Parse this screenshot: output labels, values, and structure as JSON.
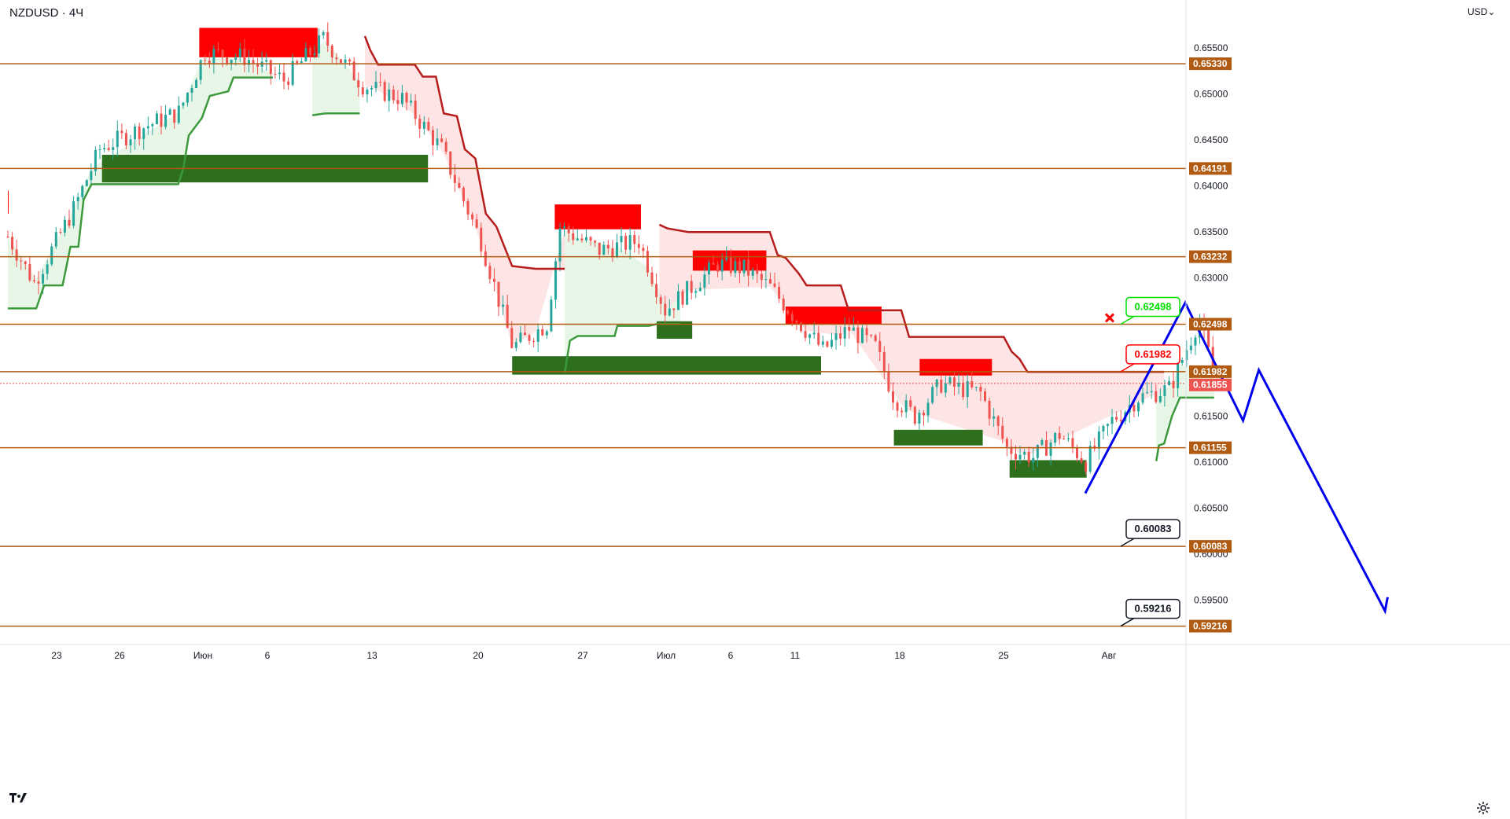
{
  "header": {
    "symbol": "NZDUSD · 4Ч",
    "currency_button": "USD"
  },
  "icons": {
    "logo": "tradingview-logo-icon",
    "settings": "gear-icon",
    "dropdown": "chevron-down-icon",
    "cancel_marker": "cross-icon"
  },
  "colors": {
    "level_line": "#b05a12",
    "supply_zone": "#ff0000",
    "demand_zone": "#2e6f1e",
    "trail_up": "#3c9a3c",
    "trail_down": "#b71c1c",
    "trail_up_fill": "#e6f5e6",
    "trail_down_fill": "#fde2e2",
    "candle_up": "#26a69a",
    "candle_down": "#ef5350",
    "projection": "#0000ee",
    "price_tag": "#b05a12",
    "current_tag": "#ef5350",
    "label_green": "#00e000",
    "label_red": "#ff0000"
  },
  "chart_data": {
    "type": "candlestick",
    "title": "NZDUSD · 4Ч",
    "y_axis": {
      "ticks": [
        "0.65500",
        "0.65000",
        "0.64500",
        "0.64000",
        "0.63500",
        "0.63000",
        "0.62500",
        "0.62000",
        "0.61500",
        "0.61000",
        "0.60500",
        "0.60000",
        "0.59500"
      ],
      "range": [
        0.5905,
        0.6598
      ]
    },
    "x_axis": {
      "ticks": [
        "23",
        "26",
        "Июн",
        "6",
        "13",
        "20",
        "27",
        "Июл",
        "6",
        "11",
        "18",
        "25",
        "Авг"
      ]
    },
    "horizontal_levels": [
      0.6533,
      0.64191,
      0.63232,
      0.62498,
      0.61982,
      0.61155,
      0.60083,
      0.59216
    ],
    "level_tags": [
      "0.65330",
      "0.64191",
      "0.63232",
      "0.62498",
      "0.61982",
      "0.61155",
      "0.60083",
      "0.59216"
    ],
    "current_price": 0.61855,
    "current_price_tag": "0.61855",
    "callouts": [
      {
        "label": "0.62498",
        "value": 0.62498,
        "style": "green"
      },
      {
        "label": "0.61982",
        "value": 0.61982,
        "style": "red"
      },
      {
        "label": "0.60083",
        "value": 0.60083,
        "style": "black"
      },
      {
        "label": "0.59216",
        "value": 0.59216,
        "style": "black"
      }
    ],
    "supply_zones": [
      {
        "x0": 0,
        "x1": 0.03,
        "y0": 0.637,
        "y1": 0.6395
      },
      {
        "x0": 7.28,
        "x1": 11.78,
        "y0": 0.654,
        "y1": 0.6572
      },
      {
        "x0": 20.8,
        "x1": 24.08,
        "y0": 0.6353,
        "y1": 0.638
      },
      {
        "x0": 26.05,
        "x1": 28.85,
        "y0": 0.6308,
        "y1": 0.633
      },
      {
        "x0": 29.58,
        "x1": 33.23,
        "y0": 0.625,
        "y1": 0.6269
      },
      {
        "x0": 34.68,
        "x1": 37.43,
        "y0": 0.6194,
        "y1": 0.6212
      }
    ],
    "demand_zones": [
      {
        "x0": 3.58,
        "x1": 15.98,
        "y0": 0.6404,
        "y1": 0.6434
      },
      {
        "x0": 19.18,
        "x1": 30.93,
        "y0": 0.6195,
        "y1": 0.6215
      },
      {
        "x0": 24.68,
        "x1": 26.03,
        "y0": 0.6234,
        "y1": 0.6253
      },
      {
        "x0": 33.7,
        "x1": 37.08,
        "y0": 0.6118,
        "y1": 0.6135
      },
      {
        "x0": 38.1,
        "x1": 41.03,
        "y0": 0.6083,
        "y1": 0.6102
      }
    ],
    "trail_up": [
      [
        [
          0.0,
          0.6267
        ],
        [
          1.08,
          0.6267
        ],
        [
          1.38,
          0.6292
        ],
        [
          2.08,
          0.6292
        ],
        [
          2.38,
          0.6334
        ],
        [
          2.68,
          0.6334
        ],
        [
          2.88,
          0.6385
        ],
        [
          3.18,
          0.6402
        ],
        [
          6.48,
          0.6402
        ],
        [
          6.68,
          0.642
        ],
        [
          6.88,
          0.6455
        ],
        [
          7.38,
          0.6474
        ],
        [
          7.68,
          0.6498
        ],
        [
          8.38,
          0.6503
        ],
        [
          8.58,
          0.6518
        ],
        [
          10.08,
          0.6518
        ]
      ],
      [
        [
          11.58,
          0.6477
        ],
        [
          12.08,
          0.6479
        ],
        [
          13.38,
          0.6479
        ]
      ],
      [
        [
          21.18,
          0.6197
        ],
        [
          21.38,
          0.6232
        ],
        [
          21.68,
          0.6237
        ],
        [
          23.08,
          0.6237
        ],
        [
          23.18,
          0.6248
        ],
        [
          24.38,
          0.6248
        ],
        [
          24.68,
          0.625
        ],
        [
          25.58,
          0.625
        ]
      ],
      [
        [
          43.68,
          0.6101
        ],
        [
          43.78,
          0.6118
        ],
        [
          43.98,
          0.612
        ],
        [
          44.28,
          0.615
        ],
        [
          44.58,
          0.617
        ],
        [
          45.88,
          0.617
        ]
      ]
    ],
    "trail_down": [
      [
        [
          13.58,
          0.6563
        ],
        [
          13.78,
          0.6548
        ],
        [
          14.08,
          0.6532
        ],
        [
          15.48,
          0.6532
        ],
        [
          15.78,
          0.6519
        ],
        [
          16.28,
          0.6519
        ],
        [
          16.58,
          0.6479
        ],
        [
          17.08,
          0.6476
        ],
        [
          17.38,
          0.644
        ],
        [
          17.78,
          0.643
        ],
        [
          18.18,
          0.637
        ],
        [
          18.58,
          0.6356
        ],
        [
          19.18,
          0.6313
        ],
        [
          20.08,
          0.631
        ],
        [
          21.18,
          0.631
        ]
      ],
      [
        [
          24.78,
          0.6358
        ],
        [
          25.08,
          0.6354
        ],
        [
          25.88,
          0.635
        ],
        [
          28.98,
          0.635
        ],
        [
          29.28,
          0.6325
        ],
        [
          29.58,
          0.6322
        ],
        [
          30.08,
          0.6305
        ],
        [
          30.38,
          0.6292
        ],
        [
          31.68,
          0.6292
        ],
        [
          31.98,
          0.6265
        ],
        [
          33.98,
          0.6265
        ],
        [
          34.28,
          0.6236
        ],
        [
          37.88,
          0.6236
        ],
        [
          38.18,
          0.622
        ],
        [
          38.48,
          0.6212
        ],
        [
          38.78,
          0.6198
        ],
        [
          43.98,
          0.6198
        ]
      ]
    ],
    "projection": [
      [
        40.98,
        0.6066
      ],
      [
        44.78,
        0.6273
      ],
      [
        46.98,
        0.6145
      ],
      [
        47.58,
        0.62
      ],
      [
        52.38,
        0.5938
      ],
      [
        52.48,
        0.5953
      ]
    ]
  }
}
